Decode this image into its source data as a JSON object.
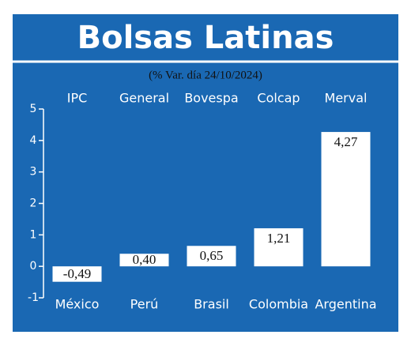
{
  "chart_data": {
    "type": "bar",
    "title": "Bolsas Latinas",
    "subtitle": "(% Var. día 24/10/2024)",
    "categories": [
      "México",
      "Perú",
      "Brasil",
      "Colombia",
      "Argentina"
    ],
    "indices": [
      "IPC",
      "General",
      "Bovespa",
      "Colcap",
      "Merval"
    ],
    "values": [
      -0.49,
      0.4,
      0.65,
      1.21,
      4.27
    ],
    "value_labels": [
      "-0,49",
      "0,40",
      "0,65",
      "1,21",
      "4,27"
    ],
    "color": "#ffffff",
    "ylim": [
      -1,
      5
    ],
    "yticks": [
      -1,
      0,
      1,
      2,
      3,
      4,
      5
    ]
  }
}
